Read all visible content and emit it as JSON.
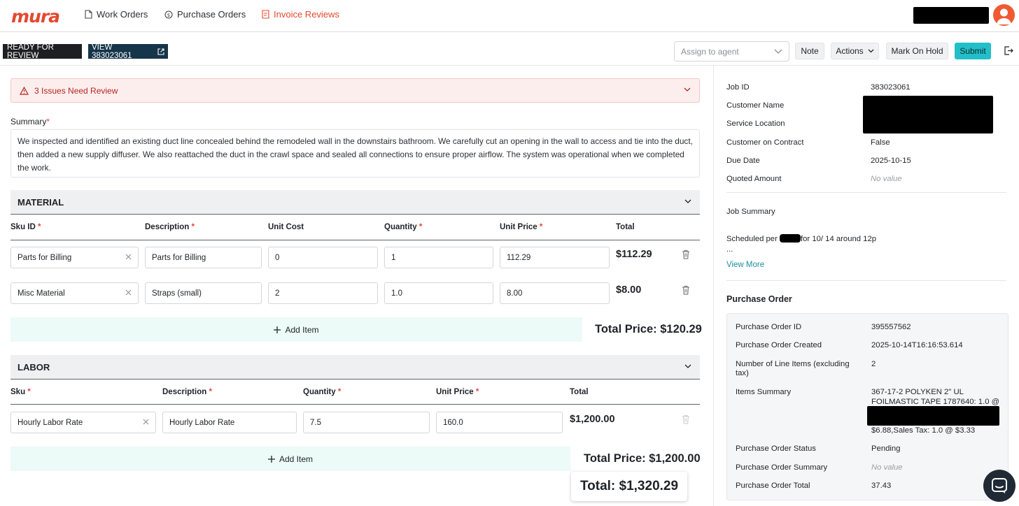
{
  "nav": {
    "logo": "mura",
    "links": [
      {
        "label": "Work Orders",
        "icon": "document-icon"
      },
      {
        "label": "Purchase Orders",
        "icon": "dollar-circle-icon"
      },
      {
        "label": "Invoice Reviews",
        "icon": "invoice-icon"
      }
    ]
  },
  "toolbar": {
    "status_tag": "READY FOR REVIEW",
    "view_link": "VIEW 383023061",
    "assign_placeholder": "Assign to agent",
    "note": "Note",
    "actions": "Actions",
    "hold": "Mark On Hold",
    "submit": "Submit"
  },
  "alert": {
    "text": "3 Issues Need Review"
  },
  "summary": {
    "label": "Summary",
    "text": "We inspected and identified an existing duct line concealed behind the remodeled wall in the downstairs bathroom. We carefully cut an opening in the wall to access and tie into the duct, then added a new supply diffuser. We also reattached the duct in the crawl space and sealed all connections to ensure proper airflow. The system was operational when we completed the work."
  },
  "material": {
    "title": "MATERIAL",
    "headers": {
      "sku": "Sku ID",
      "desc": "Description",
      "cost": "Unit Cost",
      "qty": "Quantity",
      "price": "Unit Price",
      "total": "Total"
    },
    "rows": [
      {
        "sku": "Parts for Billing",
        "desc": "Parts for Billing",
        "cost": "0",
        "qty": "1",
        "price": "112.29",
        "total": "$112.29"
      },
      {
        "sku": "Misc Material",
        "desc": "Straps (small)",
        "cost": "2",
        "qty": "1.0",
        "price": "8.00",
        "total": "$8.00"
      }
    ],
    "add_item": "Add Item",
    "total_price": "Total Price: $120.29"
  },
  "labor": {
    "title": "LABOR",
    "headers": {
      "sku": "Sku",
      "desc": "Description",
      "qty": "Quantity",
      "price": "Unit Price",
      "total": "Total"
    },
    "rows": [
      {
        "sku": "Hourly Labor Rate",
        "desc": "Hourly Labor Rate",
        "qty": "7.5",
        "price": "160.0",
        "total": "$1,200.00"
      }
    ],
    "add_item": "Add Item",
    "total_price": "Total Price: $1,200.00"
  },
  "grand_total": "Total: $1,320.29",
  "job": {
    "fields": [
      {
        "key": "Job ID",
        "value": "383023061"
      },
      {
        "key": "Customer Name",
        "value": ""
      },
      {
        "key": "Service Location",
        "value": ""
      },
      {
        "key": "Customer on Contract",
        "value": "False"
      },
      {
        "key": "Due Date",
        "value": "2025-10-15"
      },
      {
        "key": "Quoted Amount",
        "value": "No value"
      }
    ],
    "summary_label": "Job Summary",
    "summary_prefix": "Scheduled per",
    "summary_suffix": "for 10/ 14 around 12p",
    "summary_ellipsis": "...",
    "view_more": "View More"
  },
  "purchase_order": {
    "title": "Purchase Order",
    "fields": [
      {
        "key": "Purchase Order ID",
        "value": "395557562"
      },
      {
        "key": "Purchase Order Created",
        "value": "2025-10-14T16:16:53.614"
      },
      {
        "key": "Number of Line Items (excluding tax)",
        "value": "2"
      },
      {
        "key": "Items Summary",
        "value_line1": "367-17-2 POLYKEN 2\" UL",
        "value_line2": "FOILMASTIC TAPE 1787640: 1.0 @",
        "value_line3": "$6.88,Sales Tax: 1.0 @ $3.33"
      },
      {
        "key": "Purchase Order Status",
        "value": "Pending"
      },
      {
        "key": "Purchase Order Summary",
        "value": "No value"
      },
      {
        "key": "Purchase Order Total",
        "value": "37.43"
      }
    ]
  },
  "colors": {
    "brand": "#e4482f",
    "accent": "#22bfc9",
    "danger": "#b3261e"
  }
}
